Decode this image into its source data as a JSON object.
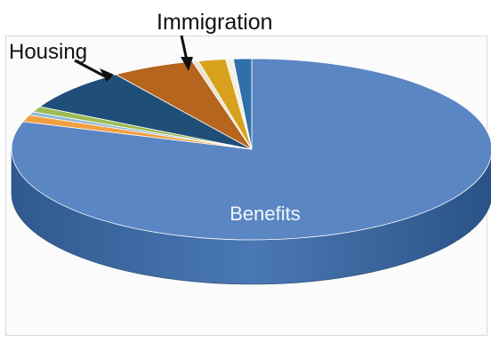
{
  "chart_data": {
    "type": "pie",
    "title": "",
    "slices": [
      {
        "label": "Benefits",
        "value": 78.5,
        "color": "#5b86c4"
      },
      {
        "label": "",
        "value": 1.2,
        "color": "#f0a040"
      },
      {
        "label": "",
        "value": 0.6,
        "color": "#8fb7d8"
      },
      {
        "label": "",
        "value": 1.0,
        "color": "#9dbb54"
      },
      {
        "label": "Housing",
        "value": 7.5,
        "color": "#1f4e79"
      },
      {
        "label": "Immigration",
        "value": 5.5,
        "color": "#b5651d"
      },
      {
        "label": "",
        "value": 0.4,
        "color": "#e8e2d0"
      },
      {
        "label": "",
        "value": 1.8,
        "color": "#d6a21e"
      },
      {
        "label": "",
        "value": 0.5,
        "color": "#f3f0e6"
      },
      {
        "label": "",
        "value": 1.2,
        "color": "#2f6faa"
      }
    ],
    "annotations": {
      "immigration": "Immigration",
      "housing": "Housing",
      "benefits": "Benefits"
    },
    "legend": "none",
    "style": "3d-pie"
  }
}
